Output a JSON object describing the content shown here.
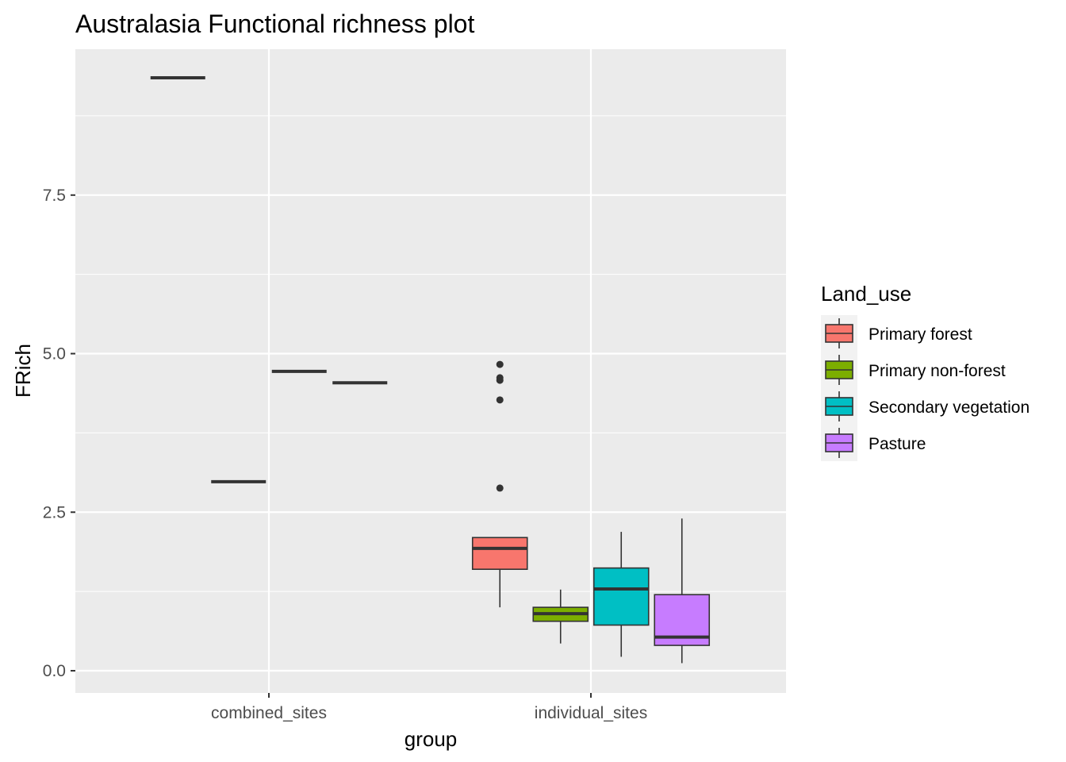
{
  "chart_data": {
    "type": "box",
    "title": "Australasia Functional richness plot",
    "xlabel": "group",
    "ylabel": "FRich",
    "categories": [
      "combined_sites",
      "individual_sites"
    ],
    "ylim": [
      -0.35,
      9.8
    ],
    "yticks": [
      0.0,
      2.5,
      5.0,
      7.5
    ],
    "ytick_labels": [
      "0.0",
      "2.5",
      "5.0",
      "7.5"
    ],
    "grid": true,
    "legend": {
      "title": "Land_use",
      "position": "right",
      "entries": [
        "Primary forest",
        "Primary non-forest",
        "Secondary vegetation",
        "Pasture"
      ]
    },
    "series": [
      {
        "name": "Primary forest",
        "color": "#F8766D",
        "boxes": [
          {
            "category": "combined_sites",
            "min": 9.35,
            "q1": 9.35,
            "median": 9.35,
            "q3": 9.35,
            "max": 9.35,
            "outliers": []
          },
          {
            "category": "individual_sites",
            "min": 1.0,
            "q1": 1.6,
            "median": 1.93,
            "q3": 2.1,
            "max": 2.1,
            "outliers": [
              2.88,
              4.27,
              4.58,
              4.62,
              4.83
            ]
          }
        ]
      },
      {
        "name": "Primary non-forest",
        "color": "#7CAE00",
        "boxes": [
          {
            "category": "combined_sites",
            "min": 2.98,
            "q1": 2.98,
            "median": 2.98,
            "q3": 2.98,
            "max": 2.98,
            "outliers": []
          },
          {
            "category": "individual_sites",
            "min": 0.43,
            "q1": 0.78,
            "median": 0.9,
            "q3": 1.0,
            "max": 1.28,
            "outliers": []
          }
        ]
      },
      {
        "name": "Secondary vegetation",
        "color": "#00BFC4",
        "boxes": [
          {
            "category": "combined_sites",
            "min": 4.72,
            "q1": 4.72,
            "median": 4.72,
            "q3": 4.72,
            "max": 4.72,
            "outliers": []
          },
          {
            "category": "individual_sites",
            "min": 0.22,
            "q1": 0.72,
            "median": 1.29,
            "q3": 1.62,
            "max": 2.19,
            "outliers": []
          }
        ]
      },
      {
        "name": "Pasture",
        "color": "#C77CFF",
        "boxes": [
          {
            "category": "combined_sites",
            "min": 4.54,
            "q1": 4.54,
            "median": 4.54,
            "q3": 4.54,
            "max": 4.54,
            "outliers": []
          },
          {
            "category": "individual_sites",
            "min": 0.12,
            "q1": 0.4,
            "median": 0.53,
            "q3": 1.2,
            "max": 2.4,
            "outliers": []
          }
        ]
      }
    ]
  }
}
